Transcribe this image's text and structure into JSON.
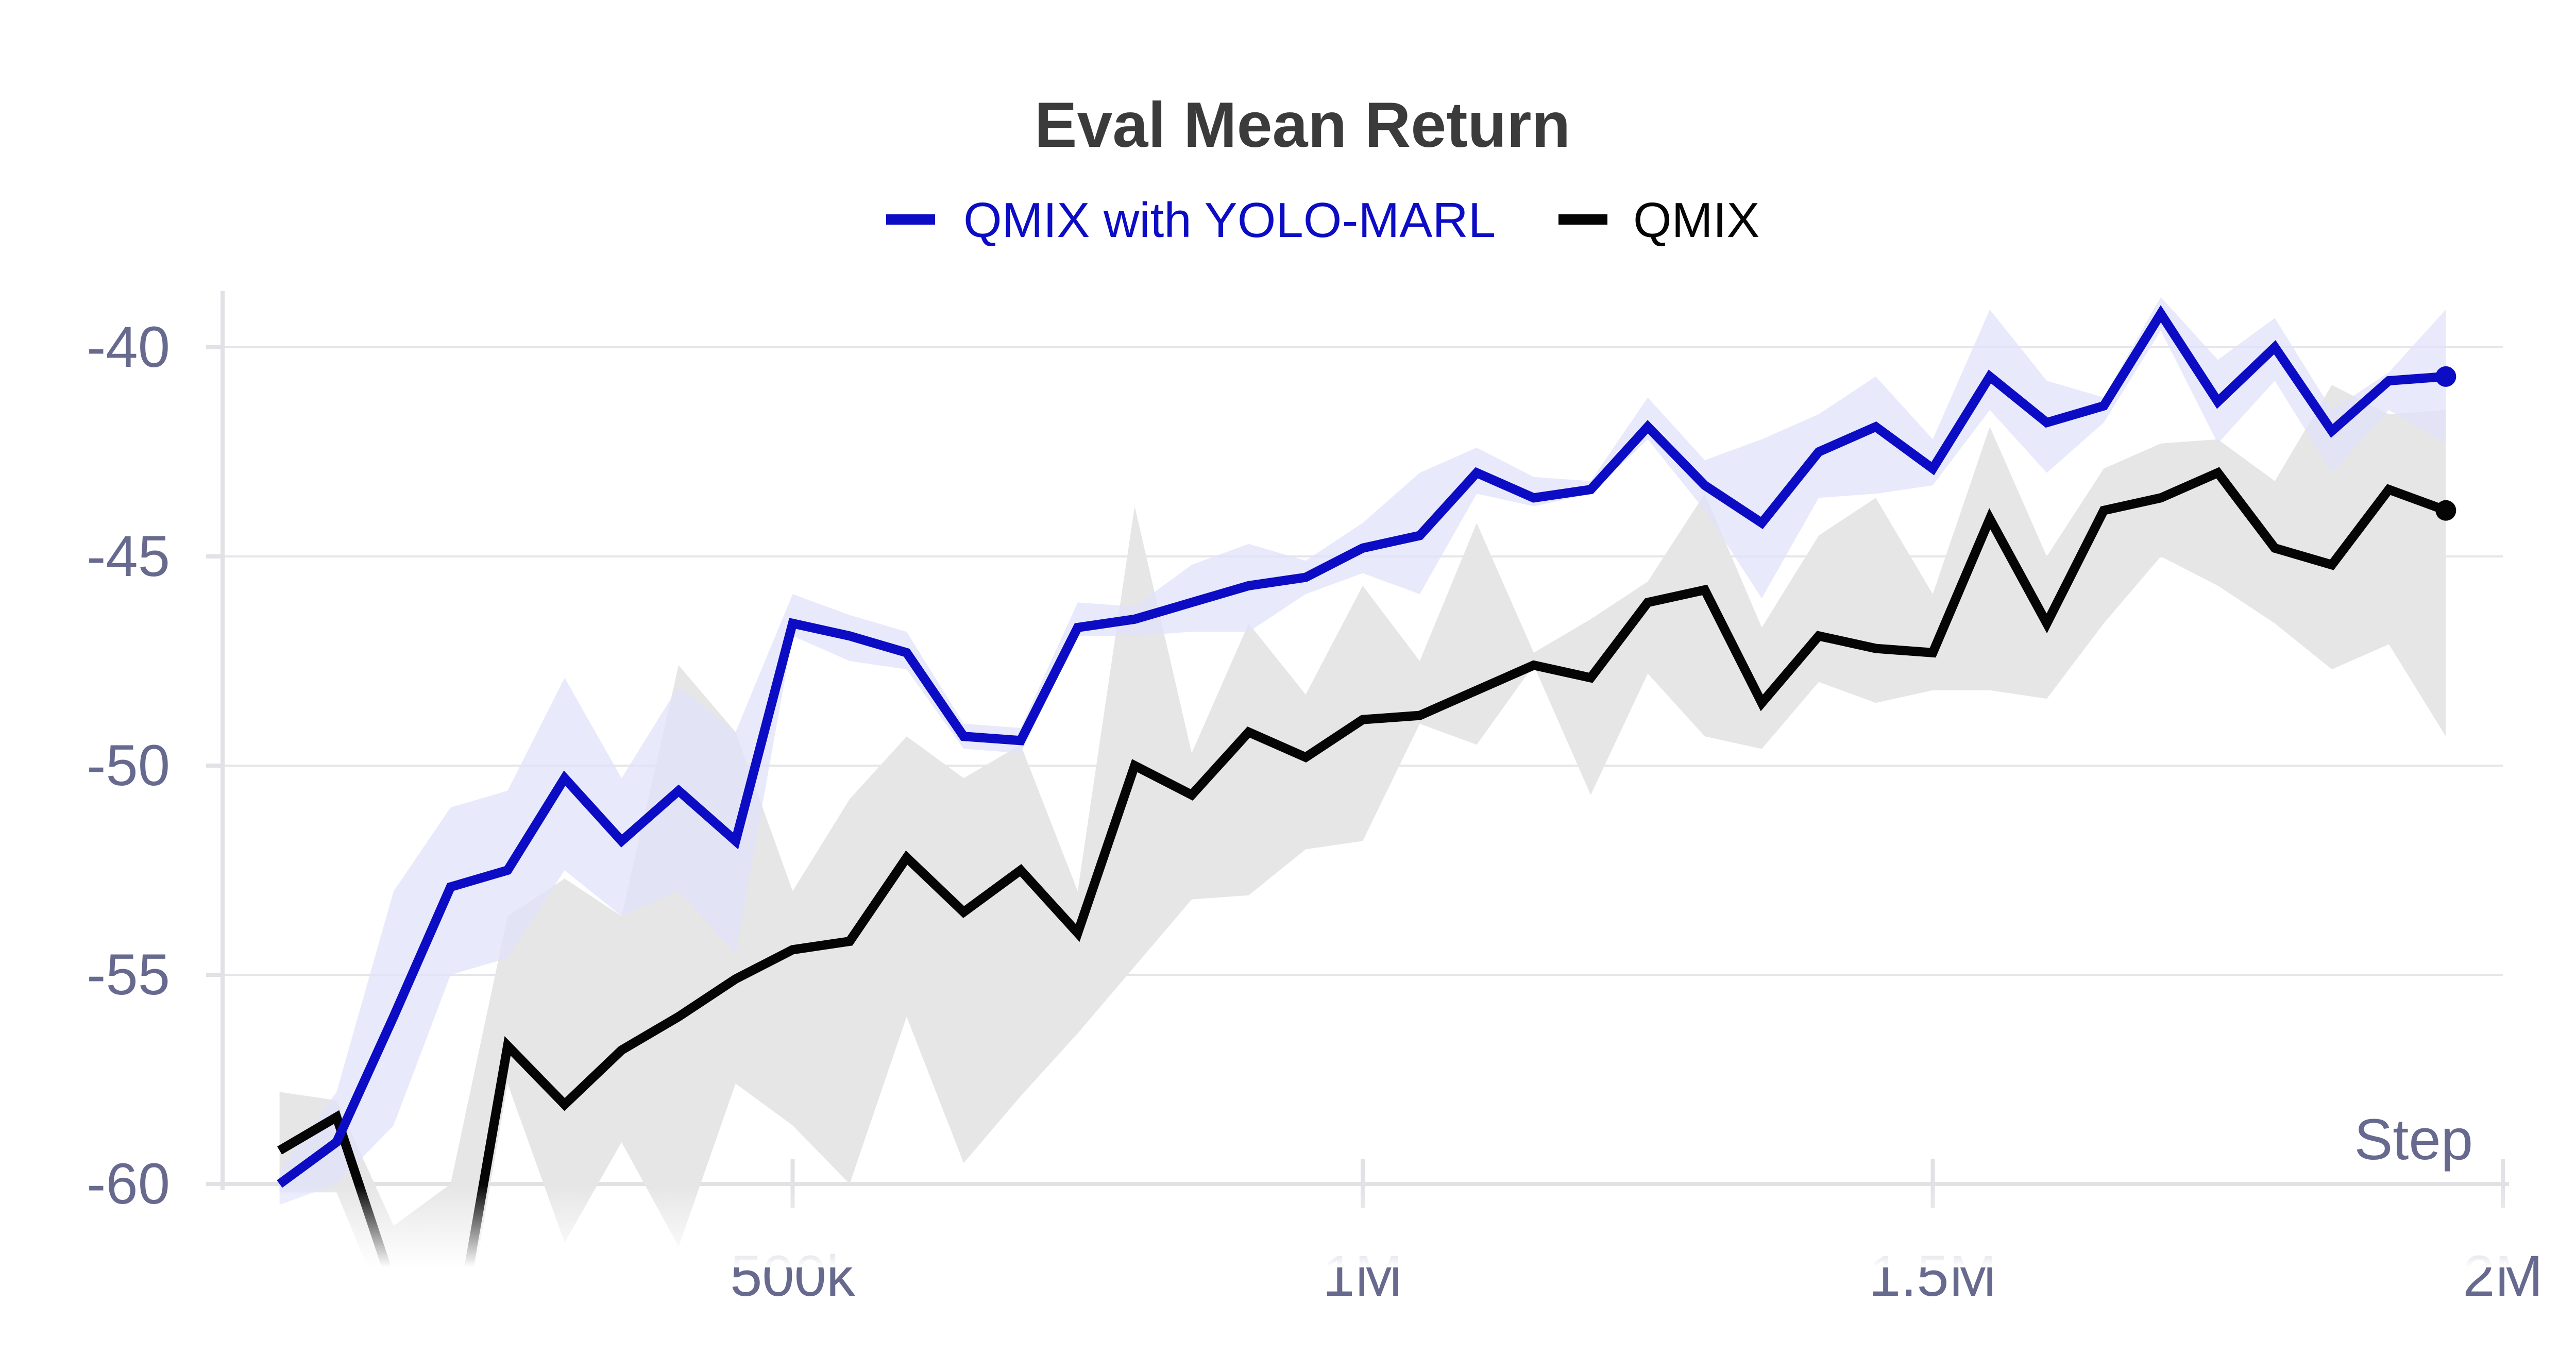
{
  "chart_data": {
    "type": "line",
    "title": "Eval Mean Return",
    "xlabel": "Step",
    "ylabel": "",
    "xlim": [
      0,
      2000000
    ],
    "ylim": [
      -60,
      -39
    ],
    "xticks": [
      {
        "value": 500000,
        "label": "500k"
      },
      {
        "value": 1000000,
        "label": "1M"
      },
      {
        "value": 1500000,
        "label": "1.5M"
      },
      {
        "value": 2000000,
        "label": "2M"
      }
    ],
    "yticks": [
      {
        "value": -40,
        "label": "-40"
      },
      {
        "value": -45,
        "label": "-45"
      },
      {
        "value": -50,
        "label": "-50"
      },
      {
        "value": -55,
        "label": "-55"
      },
      {
        "value": -60,
        "label": "-60"
      }
    ],
    "grid": true,
    "legend_position": "top-center",
    "x": [
      50000,
      100000,
      150000,
      200000,
      250000,
      300000,
      350000,
      400000,
      450000,
      500000,
      550000,
      600000,
      650000,
      700000,
      750000,
      800000,
      850000,
      900000,
      950000,
      1000000,
      1050000,
      1100000,
      1150000,
      1200000,
      1250000,
      1300000,
      1350000,
      1400000,
      1450000,
      1500000,
      1550000,
      1600000,
      1650000,
      1700000,
      1750000,
      1800000,
      1850000,
      1900000,
      1950000
    ],
    "series": [
      {
        "name": "QMIX with YOLO-MARL",
        "color": "#0c0cc4",
        "band_color": "#e0e1fa",
        "values": [
          -60.0,
          -59.0,
          -56.0,
          -52.9,
          -52.5,
          -50.3,
          -51.8,
          -50.6,
          -51.8,
          -46.6,
          -46.9,
          -47.3,
          -49.3,
          -49.4,
          -46.7,
          -46.5,
          -46.1,
          -45.7,
          -45.5,
          -44.8,
          -44.5,
          -43.0,
          -43.6,
          -43.4,
          -41.9,
          -43.3,
          -44.2,
          -42.5,
          -41.9,
          -42.9,
          -40.7,
          -41.8,
          -41.4,
          -39.2,
          -41.3,
          -40.0,
          -42.0,
          -40.8,
          -40.7
        ],
        "lower": [
          -60.5,
          -60.0,
          -58.6,
          -55.0,
          -54.6,
          -52.5,
          -53.6,
          -53.0,
          -54.5,
          -46.9,
          -47.5,
          -47.7,
          -49.6,
          -49.7,
          -46.9,
          -46.9,
          -46.8,
          -46.8,
          -45.9,
          -45.4,
          -45.9,
          -43.5,
          -43.8,
          -43.5,
          -42.2,
          -43.9,
          -46.0,
          -43.6,
          -43.5,
          -43.3,
          -41.5,
          -43.0,
          -41.8,
          -39.6,
          -42.3,
          -40.8,
          -43.0,
          -41.5,
          -42.3
        ],
        "upper": [
          -59.7,
          -57.8,
          -53.0,
          -51.0,
          -50.6,
          -47.9,
          -50.3,
          -48.1,
          -49.2,
          -45.9,
          -46.4,
          -46.8,
          -49.0,
          -49.1,
          -46.1,
          -46.2,
          -45.2,
          -44.7,
          -45.1,
          -44.2,
          -43.0,
          -42.4,
          -43.1,
          -43.2,
          -41.2,
          -42.7,
          -42.2,
          -41.6,
          -40.7,
          -42.2,
          -39.1,
          -40.8,
          -41.2,
          -38.8,
          -40.3,
          -39.3,
          -41.5,
          -40.6,
          -39.1
        ]
      },
      {
        "name": "QMIX",
        "color": "#050505",
        "band_color": "#e6e6e6",
        "values": [
          -59.2,
          -58.4,
          -62.5,
          -64.5,
          -56.7,
          -58.1,
          -56.8,
          -56.0,
          -55.1,
          -54.4,
          -54.2,
          -52.2,
          -53.5,
          -52.5,
          -54.0,
          -50.0,
          -50.7,
          -49.2,
          -49.8,
          -48.9,
          -48.8,
          -48.2,
          -47.6,
          -47.9,
          -46.1,
          -45.8,
          -48.5,
          -46.9,
          -47.2,
          -47.3,
          -44.1,
          -46.6,
          -43.9,
          -43.6,
          -43.0,
          -44.8,
          -45.2,
          -43.4,
          -43.9
        ],
        "lower": [
          -60.2,
          -60.2,
          -63.5,
          -65.5,
          -57.6,
          -61.4,
          -59.0,
          -61.5,
          -57.6,
          -58.6,
          -60.0,
          -56.0,
          -59.5,
          -57.9,
          -56.4,
          -54.8,
          -53.2,
          -53.1,
          -52.0,
          -51.8,
          -49.0,
          -49.5,
          -47.6,
          -50.7,
          -47.8,
          -49.3,
          -49.6,
          -48.0,
          -48.5,
          -48.2,
          -48.2,
          -48.4,
          -46.6,
          -45.0,
          -45.7,
          -46.6,
          -47.7,
          -47.1,
          -49.3
        ],
        "upper": [
          -57.8,
          -58.0,
          -61.0,
          -60.0,
          -53.6,
          -52.7,
          -53.6,
          -47.6,
          -49.2,
          -53.0,
          -50.8,
          -49.3,
          -50.3,
          -49.5,
          -53.0,
          -43.8,
          -49.7,
          -46.6,
          -48.3,
          -45.7,
          -47.5,
          -44.2,
          -47.3,
          -46.5,
          -45.6,
          -43.5,
          -46.7,
          -44.5,
          -43.6,
          -45.9,
          -41.9,
          -45.0,
          -42.9,
          -42.3,
          -42.2,
          -43.2,
          -40.9,
          -41.6,
          -41.5
        ]
      }
    ]
  }
}
